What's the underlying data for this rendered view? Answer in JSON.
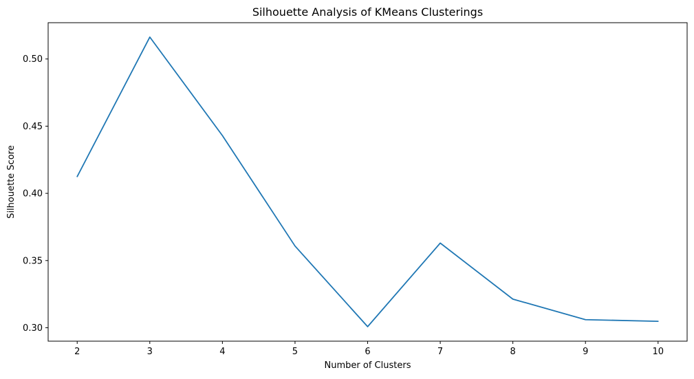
{
  "chart_data": {
    "type": "line",
    "title": "Silhouette Analysis of KMeans Clusterings",
    "xlabel": "Number of Clusters",
    "ylabel": "Silhouette Score",
    "x": [
      2,
      3,
      4,
      5,
      6,
      7,
      8,
      9,
      10
    ],
    "series": [
      {
        "values": [
          0.4125,
          0.5163,
          0.443,
          0.3608,
          0.3008,
          0.363,
          0.3213,
          0.306,
          0.3048
        ],
        "color": "#1f77b4"
      }
    ],
    "xticks": [
      "2",
      "3",
      "4",
      "5",
      "6",
      "7",
      "8",
      "9",
      "10"
    ],
    "yticks": [
      "0.30",
      "0.35",
      "0.40",
      "0.45",
      "0.50"
    ],
    "xlim": [
      1.6,
      10.4
    ],
    "ylim": [
      0.29,
      0.527
    ],
    "grid": false,
    "legend": "none"
  }
}
